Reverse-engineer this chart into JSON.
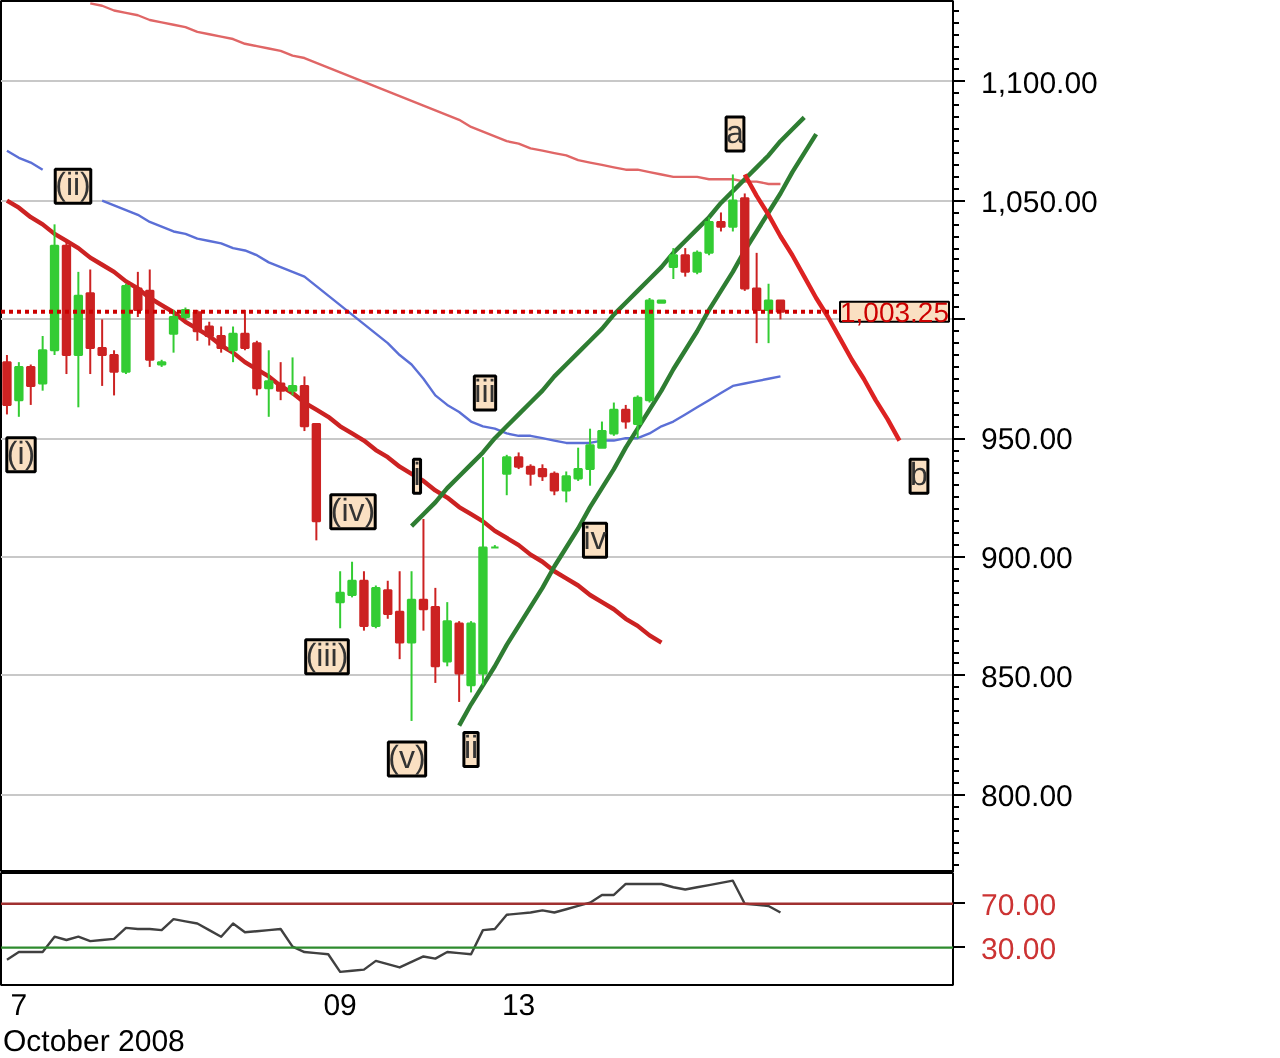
{
  "chart_data": [
    {
      "type": "candlestick",
      "categories": [
        null,
        "7",
        null,
        null,
        null,
        null,
        null,
        null,
        null,
        null,
        null,
        null,
        null,
        null,
        null,
        null,
        null,
        null,
        null,
        null,
        null,
        null,
        null,
        null,
        null,
        null,
        null,
        null,
        "09",
        null,
        null,
        null,
        null,
        null,
        null,
        null,
        null,
        null,
        null,
        null,
        null,
        null,
        null,
        "13",
        null,
        null,
        null,
        null,
        null,
        null,
        null,
        null,
        null,
        null,
        null,
        null,
        null,
        null,
        null,
        null,
        null,
        null,
        null,
        null,
        null,
        null,
        null,
        null,
        null,
        null,
        null,
        null,
        null,
        null,
        null,
        null,
        null,
        null,
        null,
        null
      ],
      "ohlc": [
        [
          982,
          985,
          960,
          964
        ],
        [
          966,
          982,
          959,
          980
        ],
        [
          980,
          981,
          964,
          972
        ],
        [
          973,
          993,
          970,
          987
        ],
        [
          987,
          1040,
          985,
          1031
        ],
        [
          1031,
          1033,
          977,
          985
        ],
        [
          985,
          1020,
          963,
          1010
        ],
        [
          1011,
          1021,
          977,
          988
        ],
        [
          988,
          1000,
          972,
          985
        ],
        [
          985,
          987,
          968,
          978
        ],
        [
          978,
          1015,
          977,
          1014
        ],
        [
          1013,
          1020,
          1001,
          1004
        ],
        [
          1012,
          1021,
          980,
          983
        ],
        [
          981,
          983,
          980,
          982
        ],
        [
          994,
          1004,
          986,
          1001
        ],
        [
          1001,
          1005,
          1000,
          1004
        ],
        [
          1003,
          1004,
          991,
          995
        ],
        [
          997,
          999,
          989,
          993
        ],
        [
          993,
          997,
          986,
          988
        ],
        [
          987,
          997,
          982,
          994
        ],
        [
          994,
          1004,
          987,
          988
        ],
        [
          990,
          991,
          968,
          971
        ],
        [
          971,
          987,
          959,
          974
        ],
        [
          973,
          982,
          966,
          970
        ],
        [
          970,
          984,
          968,
          972
        ],
        [
          972,
          976,
          953,
          955
        ],
        [
          956,
          956,
          907,
          915
        ],
        null,
        [
          881,
          894,
          870,
          885
        ],
        [
          884,
          898,
          883,
          890
        ],
        [
          890,
          894,
          869,
          871
        ],
        [
          871,
          888,
          870,
          887
        ],
        [
          886,
          890,
          874,
          876
        ],
        [
          877,
          894,
          857,
          864
        ],
        [
          864,
          894,
          831,
          882
        ],
        [
          882,
          916,
          869,
          878
        ],
        [
          879,
          887,
          847,
          854
        ],
        [
          856,
          881,
          854,
          873
        ],
        [
          872,
          873,
          839,
          851
        ],
        [
          846,
          873,
          843,
          872
        ],
        [
          851,
          942,
          846,
          904
        ],
        [
          904,
          905,
          904,
          904
        ],
        [
          935,
          943,
          926,
          942
        ],
        [
          942,
          944,
          937,
          938
        ],
        [
          938,
          939,
          930,
          935
        ],
        [
          937,
          939,
          932,
          934
        ],
        [
          935,
          936,
          926,
          928
        ],
        [
          928,
          936,
          923,
          934
        ],
        [
          933,
          946,
          932,
          937
        ],
        [
          937,
          954,
          930,
          947
        ],
        [
          946,
          957,
          946,
          953
        ],
        [
          952,
          965,
          951,
          962
        ],
        [
          962,
          964,
          954,
          957
        ],
        [
          956,
          968,
          950,
          967
        ],
        [
          966,
          1009,
          965,
          1008
        ],
        [
          1007,
          1008,
          1007,
          1008
        ],
        [
          1022,
          1030,
          1017,
          1027
        ],
        [
          1027,
          1030,
          1018,
          1020
        ],
        [
          1020,
          1029,
          1019,
          1028
        ],
        [
          1028,
          1043,
          1027,
          1041
        ],
        [
          1041,
          1045,
          1037,
          1039
        ],
        [
          1039,
          1061,
          1037,
          1050
        ],
        [
          1051,
          1053,
          1012,
          1013
        ],
        [
          1013,
          1028,
          990,
          1004
        ],
        [
          1004,
          1015,
          990,
          1008
        ],
        [
          1008,
          1008,
          1000,
          1003.25
        ],
        null,
        null,
        null,
        null,
        null,
        null,
        null,
        null,
        null,
        null,
        null,
        null,
        null,
        null
      ],
      "colors": [
        "#cc2222",
        "#33cc33",
        "#cc2222",
        "#33cc33",
        "#33cc33",
        "#cc2222",
        "#33cc33",
        "#cc2222",
        "#cc2222",
        "#cc2222",
        "#33cc33",
        "#cc2222",
        "#cc2222",
        "#33cc33",
        "#33cc33",
        "#33cc33",
        "#cc2222",
        "#cc2222",
        "#cc2222",
        "#33cc33",
        "#cc2222",
        "#cc2222",
        "#33cc33",
        "#cc2222",
        "#33cc33",
        "#cc2222",
        "#cc2222",
        null,
        "#33cc33",
        "#33cc33",
        "#cc2222",
        "#33cc33",
        "#cc2222",
        "#cc2222",
        "#33cc33",
        "#cc2222",
        "#cc2222",
        "#33cc33",
        "#cc2222",
        "#33cc33",
        "#33cc33",
        "#33cc33",
        "#33cc33",
        "#cc2222",
        "#cc2222",
        "#cc2222",
        "#cc2222",
        "#33cc33",
        "#33cc33",
        "#33cc33",
        "#33cc33",
        "#33cc33",
        "#cc2222",
        "#33cc33",
        "#33cc33",
        "#33cc33",
        "#33cc33",
        "#cc2222",
        "#33cc33",
        "#33cc33",
        "#cc2222",
        "#33cc33",
        "#cc2222",
        "#cc2222",
        "#33cc33",
        "#cc2222",
        null,
        null,
        null,
        null,
        null,
        null,
        null,
        null,
        null,
        null,
        null,
        null,
        null,
        null
      ],
      "series": [
        {
          "type": "line",
          "color": "#e06666",
          "values": [
            null,
            null,
            null,
            null,
            null,
            null,
            null,
            1133,
            1132,
            1130,
            1129,
            1128,
            1126,
            1125,
            1124,
            1123,
            1121,
            1120,
            1119,
            1118,
            1116,
            1115,
            1114,
            1113,
            1111,
            1110,
            1108,
            1106,
            1104,
            1102,
            1100,
            1098,
            1096,
            1094,
            1092,
            1090,
            1088,
            1086,
            1084,
            1081,
            1079,
            1077,
            1075,
            1074,
            1072,
            1071,
            1070,
            1069,
            1067,
            1066,
            1065,
            1064,
            1063,
            1063,
            1062,
            1061,
            1060,
            1060,
            1060,
            1059,
            1059,
            1059,
            1058,
            1058,
            1057,
            1057,
            null,
            null,
            null,
            null,
            null,
            null,
            null,
            null,
            null,
            null,
            null,
            null,
            null,
            null
          ]
        },
        {
          "type": "line",
          "color": "#5b6fd6",
          "values": [
            1071,
            1068,
            1066,
            1063,
            null,
            null,
            null,
            null,
            1050,
            1048,
            1046,
            1044,
            1041,
            1039,
            1037,
            1036,
            1034,
            1033,
            1032,
            1030,
            1029,
            1027,
            1024,
            1022,
            1020,
            1018,
            1014,
            1010,
            1006,
            1002,
            998,
            994,
            990,
            985,
            981,
            975,
            968,
            964,
            961,
            957,
            955,
            954,
            952,
            951,
            951,
            950,
            949,
            948,
            948,
            948,
            949,
            949,
            950,
            950,
            952,
            955,
            957,
            960,
            963,
            966,
            969,
            972,
            973,
            974,
            975,
            976,
            null,
            null,
            null,
            null,
            null,
            null,
            null,
            null,
            null,
            null,
            null,
            null,
            null,
            null
          ]
        },
        {
          "type": "line",
          "color": "#cc2222",
          "values": [
            1050,
            1047,
            1043,
            1040,
            1036,
            1033,
            1030,
            1026,
            1023,
            1020,
            1016,
            1013,
            1009,
            1006,
            1003,
            999,
            996,
            993,
            989,
            986,
            982,
            979,
            976,
            972,
            969,
            965,
            962,
            959,
            955,
            952,
            949,
            945,
            942,
            938,
            935,
            932,
            928,
            925,
            921,
            918,
            915,
            911,
            908,
            905,
            901,
            898,
            894,
            891,
            888,
            884,
            881,
            878,
            874,
            871,
            867,
            864,
            null,
            null,
            null,
            null,
            null,
            null,
            null,
            null,
            null,
            null,
            null,
            null,
            null,
            null,
            null,
            null,
            null,
            null,
            null,
            null,
            null,
            null,
            null,
            null
          ]
        },
        {
          "type": "line",
          "color": "#2e7d32",
          "values": [
            null,
            null,
            null,
            null,
            null,
            null,
            null,
            null,
            null,
            null,
            null,
            null,
            null,
            null,
            null,
            null,
            null,
            null,
            null,
            null,
            null,
            null,
            null,
            null,
            null,
            null,
            null,
            null,
            null,
            null,
            null,
            null,
            null,
            null,
            913,
            918,
            923,
            929,
            934,
            939,
            944,
            950,
            955,
            960,
            965,
            970,
            976,
            981,
            986,
            991,
            996,
            1002,
            1007,
            1012,
            1017,
            1022,
            1028,
            1033,
            1038,
            1043,
            1049,
            1054,
            1059,
            1064,
            1069,
            1075,
            1080,
            1085,
            null,
            null,
            null,
            null,
            null,
            null,
            null,
            null,
            null,
            null,
            null,
            null
          ]
        },
        {
          "type": "line",
          "color": "#2e7d32",
          "values": [
            null,
            null,
            null,
            null,
            null,
            null,
            null,
            null,
            null,
            null,
            null,
            null,
            null,
            null,
            null,
            null,
            null,
            null,
            null,
            null,
            null,
            null,
            null,
            null,
            null,
            null,
            null,
            null,
            null,
            null,
            null,
            null,
            null,
            null,
            null,
            null,
            null,
            null,
            829,
            838,
            846,
            854,
            863,
            871,
            879,
            887,
            896,
            904,
            912,
            921,
            929,
            937,
            946,
            954,
            962,
            970,
            979,
            987,
            995,
            1004,
            1012,
            1020,
            1029,
            1037,
            1045,
            1053,
            1062,
            1070,
            1078,
            null,
            null,
            null,
            null,
            null,
            null,
            null,
            null,
            null,
            null,
            null
          ]
        },
        {
          "type": "line",
          "color": "#dd2222",
          "values": [
            null,
            null,
            null,
            null,
            null,
            null,
            null,
            null,
            null,
            null,
            null,
            null,
            null,
            null,
            null,
            null,
            null,
            null,
            null,
            null,
            null,
            null,
            null,
            null,
            null,
            null,
            null,
            null,
            null,
            null,
            null,
            null,
            null,
            null,
            null,
            null,
            null,
            null,
            null,
            null,
            null,
            null,
            null,
            null,
            null,
            null,
            null,
            null,
            null,
            null,
            null,
            null,
            null,
            null,
            null,
            null,
            null,
            null,
            null,
            null,
            null,
            null,
            1061,
            1052,
            1044,
            1035,
            1027,
            1018,
            1009,
            1001,
            992,
            983,
            975,
            966,
            958,
            949,
            null,
            null,
            null,
            null
          ]
        }
      ],
      "ref_lines": [
        {
          "axis": "y",
          "value": 1003.25,
          "label": "1,003.25",
          "color": "#cc0000",
          "line_style": "dotted"
        }
      ],
      "annotations": [
        {
          "text": "(i)",
          "y": 943
        },
        {
          "text": "(ii)",
          "y": 1056
        },
        {
          "text": "(iii)",
          "y": 858
        },
        {
          "text": "(iv)",
          "y": 919
        },
        {
          "text": "(v)",
          "y": 815
        },
        {
          "text": "i",
          "y": 934
        },
        {
          "text": "ii",
          "y": 819
        },
        {
          "text": "iii",
          "y": 969
        },
        {
          "text": "iv",
          "y": 907
        },
        {
          "text": "a",
          "y": 1078
        },
        {
          "text": "b",
          "y": 934
        }
      ],
      "ylim": [
        767,
        1134
      ],
      "yticks": [
        {
          "value": 800,
          "label": "800.00"
        },
        {
          "value": 850,
          "label": "850.00"
        },
        {
          "value": 900,
          "label": "900.00"
        },
        {
          "value": 950,
          "label": "950.00"
        },
        {
          "value": 1000,
          "label": null
        },
        {
          "value": 1050,
          "label": "1,050.00"
        },
        {
          "value": 1100,
          "label": "1,100.00"
        }
      ],
      "grid": "y",
      "tick_labels": "y"
    },
    {
      "type": "line",
      "color": "#404040",
      "categories": [
        null,
        "7",
        null,
        null,
        null,
        null,
        null,
        null,
        null,
        null,
        null,
        null,
        null,
        null,
        null,
        null,
        null,
        null,
        null,
        null,
        null,
        null,
        null,
        null,
        null,
        null,
        null,
        null,
        "09",
        null,
        null,
        null,
        null,
        null,
        null,
        null,
        null,
        null,
        null,
        null,
        null,
        null,
        null,
        "13",
        null,
        null,
        null,
        null,
        null,
        null,
        null,
        null,
        null,
        null,
        null,
        null,
        null,
        null,
        null,
        null,
        null,
        null,
        null,
        null,
        null,
        null,
        null,
        null,
        null,
        null,
        null,
        null,
        null,
        null,
        null,
        null,
        null,
        null,
        null,
        null
      ],
      "values": [
        19,
        26,
        26,
        26,
        40,
        37,
        40,
        36,
        37,
        38,
        48,
        47,
        47,
        46,
        56,
        54,
        52,
        46,
        40,
        52,
        44,
        45,
        46,
        47,
        31,
        26,
        25,
        24,
        8,
        9,
        10,
        18,
        15,
        12,
        17,
        22,
        20,
        26,
        25,
        24,
        46,
        47,
        60,
        61,
        62,
        64,
        62,
        65,
        68,
        71,
        78,
        78,
        88,
        88,
        88,
        88,
        85,
        83,
        85,
        87,
        89,
        91,
        70,
        69,
        68,
        62,
        null,
        null,
        null,
        null,
        null,
        null,
        null,
        null,
        null,
        null,
        null,
        null,
        null,
        null
      ],
      "ref_lines": [
        {
          "axis": "y",
          "value": 70,
          "color": "#a03030"
        },
        {
          "axis": "y",
          "value": 30,
          "color": "#2e8b2e"
        }
      ],
      "ylim": [
        -4,
        98
      ],
      "yticks": [
        {
          "value": 30,
          "label": "30.00"
        },
        {
          "value": 70,
          "label": "70.00"
        }
      ],
      "xlabel": "October 2008"
    }
  ]
}
